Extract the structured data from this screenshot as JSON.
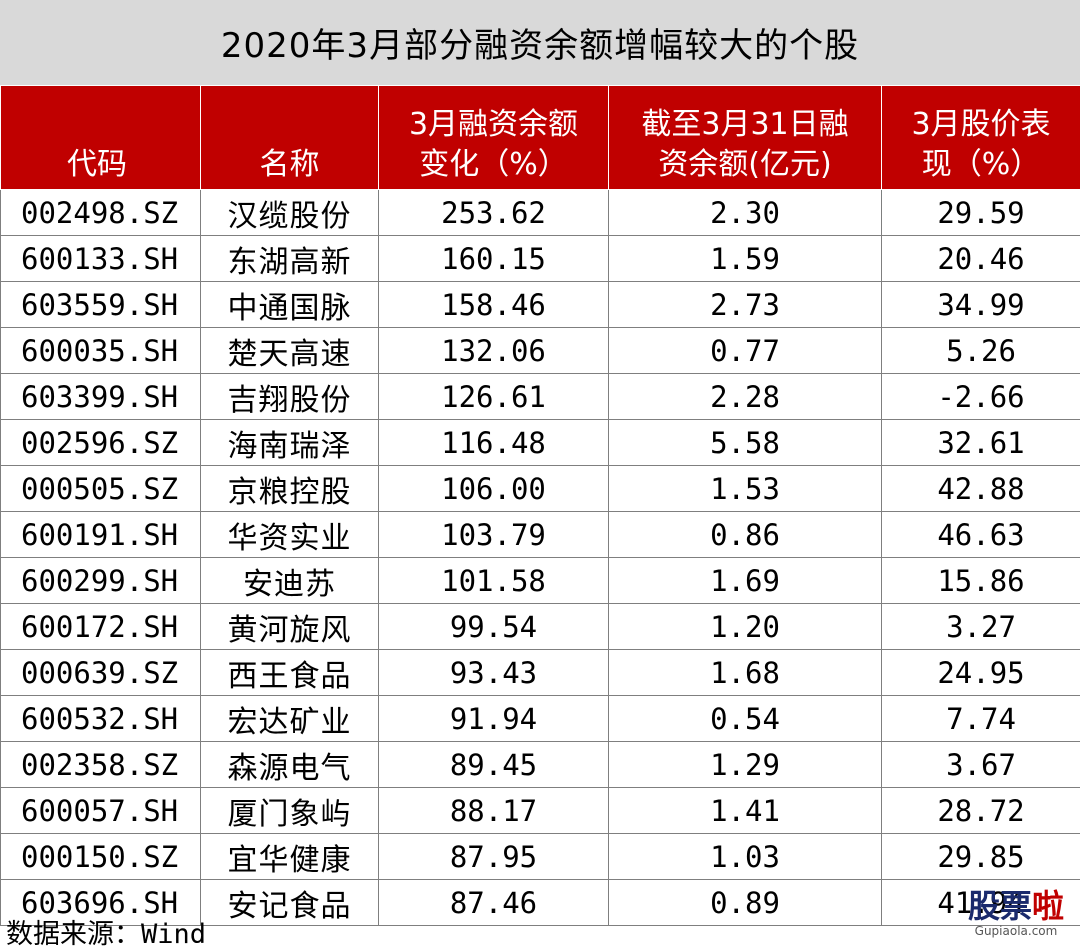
{
  "title": "2020年3月部分融资余额增幅较大的个股",
  "headers": {
    "code": "代码",
    "name": "名称",
    "change_l1": "3月融资余额",
    "change_l2": "变化（%）",
    "balance_l1": "截至3月31日融",
    "balance_l2": "资余额(亿元)",
    "price_l1": "3月股价表",
    "price_l2": "现（%）"
  },
  "rows": [
    {
      "code": "002498.SZ",
      "name": "汉缆股份",
      "change": "253.62",
      "balance": "2.30",
      "price": "29.59"
    },
    {
      "code": "600133.SH",
      "name": "东湖高新",
      "change": "160.15",
      "balance": "1.59",
      "price": "20.46"
    },
    {
      "code": "603559.SH",
      "name": "中通国脉",
      "change": "158.46",
      "balance": "2.73",
      "price": "34.99"
    },
    {
      "code": "600035.SH",
      "name": "楚天高速",
      "change": "132.06",
      "balance": "0.77",
      "price": "5.26"
    },
    {
      "code": "603399.SH",
      "name": "吉翔股份",
      "change": "126.61",
      "balance": "2.28",
      "price": "-2.66"
    },
    {
      "code": "002596.SZ",
      "name": "海南瑞泽",
      "change": "116.48",
      "balance": "5.58",
      "price": "32.61"
    },
    {
      "code": "000505.SZ",
      "name": "京粮控股",
      "change": "106.00",
      "balance": "1.53",
      "price": "42.88"
    },
    {
      "code": "600191.SH",
      "name": "华资实业",
      "change": "103.79",
      "balance": "0.86",
      "price": "46.63"
    },
    {
      "code": "600299.SH",
      "name": "安迪苏",
      "change": "101.58",
      "balance": "1.69",
      "price": "15.86"
    },
    {
      "code": "600172.SH",
      "name": "黄河旋风",
      "change": "99.54",
      "balance": "1.20",
      "price": "3.27"
    },
    {
      "code": "000639.SZ",
      "name": "西王食品",
      "change": "93.43",
      "balance": "1.68",
      "price": "24.95"
    },
    {
      "code": "600532.SH",
      "name": "宏达矿业",
      "change": "91.94",
      "balance": "0.54",
      "price": "7.74"
    },
    {
      "code": "002358.SZ",
      "name": "森源电气",
      "change": "89.45",
      "balance": "1.29",
      "price": "3.67"
    },
    {
      "code": "600057.SH",
      "name": "厦门象屿",
      "change": "88.17",
      "balance": "1.41",
      "price": "28.72"
    },
    {
      "code": "000150.SZ",
      "name": "宜华健康",
      "change": "87.95",
      "balance": "1.03",
      "price": "29.85"
    },
    {
      "code": "603696.SH",
      "name": "安记食品",
      "change": "87.46",
      "balance": "0.89",
      "price": "41.94"
    }
  ],
  "source": {
    "label": "数据来源：",
    "value": "Wind"
  },
  "watermark": {
    "text_a": "股票",
    "text_b": "啦",
    "url": "Gupiaola.com"
  }
}
